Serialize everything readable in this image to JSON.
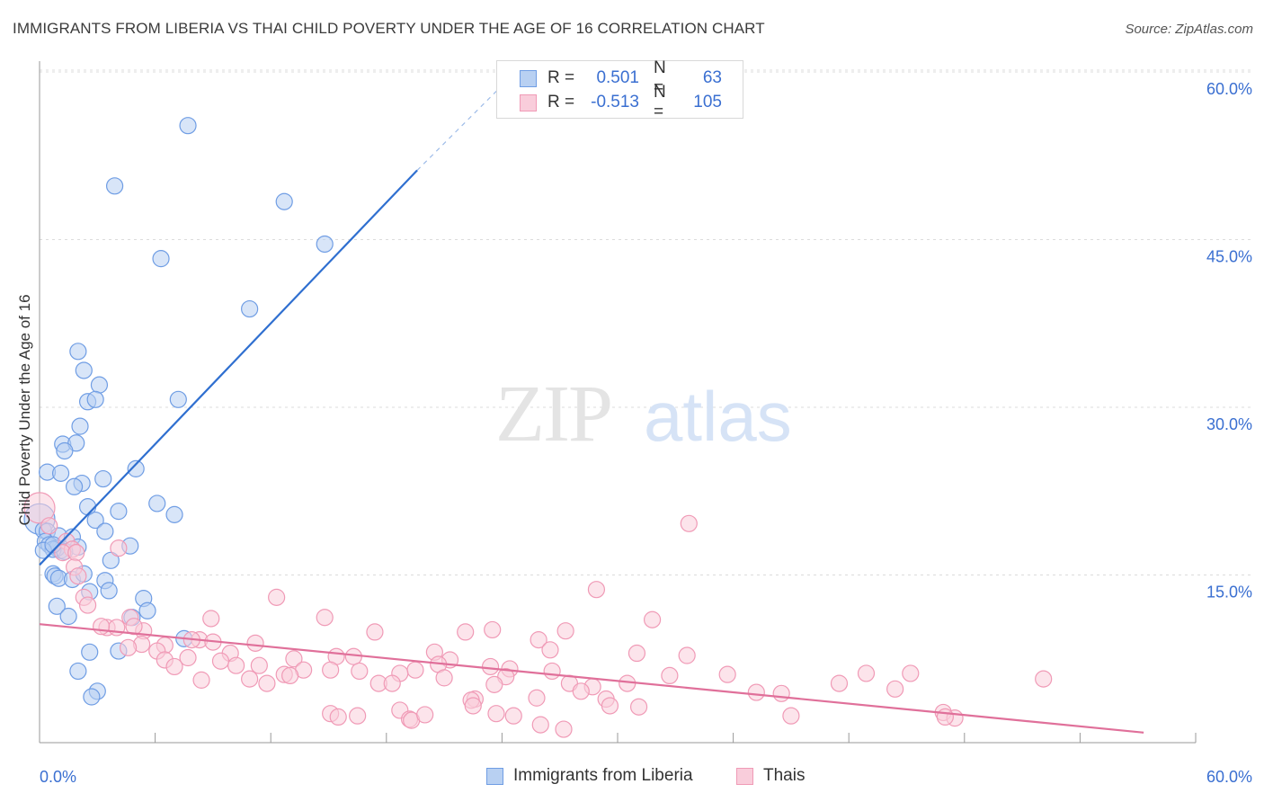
{
  "title": "IMMIGRANTS FROM LIBERIA VS THAI CHILD POVERTY UNDER THE AGE OF 16 CORRELATION CHART",
  "source": "Source: ZipAtlas.com",
  "watermark": {
    "zip": "ZIP",
    "atlas": "atlas"
  },
  "legend_stats": [
    {
      "r_label": "R =",
      "r_value": "0.501",
      "n_label": "N =",
      "n_value": "63",
      "color": "#6f9de4",
      "fill": "#b8d0f2"
    },
    {
      "r_label": "R =",
      "r_value": "-0.513",
      "n_label": "N =",
      "n_value": "105",
      "color": "#f09ab6",
      "fill": "#f9cddb"
    }
  ],
  "chart_data": {
    "type": "scatter",
    "title": "IMMIGRANTS FROM LIBERIA VS THAI CHILD POVERTY UNDER THE AGE OF 16 CORRELATION CHART",
    "xlabel": "",
    "ylabel": "Child Poverty Under the Age of 16",
    "xlim": [
      0,
      60
    ],
    "ylim": [
      0,
      60
    ],
    "x_tick_labels": [
      "0.0%",
      "60.0%"
    ],
    "y_tick_labels": [
      "15.0%",
      "30.0%",
      "45.0%",
      "60.0%"
    ],
    "y_ticks": [
      15,
      30,
      45,
      60
    ],
    "grid": true,
    "legend_position": "bottom",
    "series": [
      {
        "name": "Immigrants from Liberia",
        "color": "#6f9de4",
        "fill": "#b8d0f2",
        "trend": {
          "x0": 0,
          "y0": 15.9,
          "x1": 19.6,
          "y1": 51.2,
          "dash_to_x": 25.0,
          "dash_to_y": 60.5
        },
        "points": [
          [
            7.7,
            55.2
          ],
          [
            3.9,
            49.8
          ],
          [
            12.7,
            48.4
          ],
          [
            14.8,
            44.6
          ],
          [
            6.3,
            43.3
          ],
          [
            10.9,
            38.8
          ],
          [
            2.0,
            35.0
          ],
          [
            2.3,
            33.3
          ],
          [
            3.1,
            32.0
          ],
          [
            2.5,
            30.5
          ],
          [
            2.9,
            30.7
          ],
          [
            7.2,
            30.7
          ],
          [
            2.1,
            28.3
          ],
          [
            1.2,
            26.7
          ],
          [
            1.9,
            26.8
          ],
          [
            1.3,
            26.1
          ],
          [
            0.4,
            24.2
          ],
          [
            1.1,
            24.1
          ],
          [
            3.3,
            23.6
          ],
          [
            5.0,
            24.5
          ],
          [
            2.2,
            23.2
          ],
          [
            1.8,
            22.9
          ],
          [
            0.0,
            20.0
          ],
          [
            6.1,
            21.4
          ],
          [
            2.5,
            21.1
          ],
          [
            4.1,
            20.7
          ],
          [
            7.0,
            20.4
          ],
          [
            2.9,
            19.9
          ],
          [
            0.2,
            19.0
          ],
          [
            0.4,
            18.9
          ],
          [
            1.0,
            18.5
          ],
          [
            1.7,
            18.4
          ],
          [
            3.4,
            18.9
          ],
          [
            0.3,
            18.0
          ],
          [
            0.5,
            17.7
          ],
          [
            1.1,
            17.2
          ],
          [
            0.9,
            17.4
          ],
          [
            2.0,
            17.5
          ],
          [
            0.7,
            17.3
          ],
          [
            4.7,
            17.6
          ],
          [
            0.2,
            17.2
          ],
          [
            1.3,
            17.1
          ],
          [
            3.7,
            16.3
          ],
          [
            0.7,
            15.1
          ],
          [
            0.8,
            14.9
          ],
          [
            1.0,
            14.7
          ],
          [
            1.7,
            14.6
          ],
          [
            2.3,
            15.1
          ],
          [
            3.4,
            14.5
          ],
          [
            3.6,
            13.6
          ],
          [
            2.6,
            13.5
          ],
          [
            5.4,
            12.9
          ],
          [
            0.9,
            12.2
          ],
          [
            5.6,
            11.8
          ],
          [
            4.8,
            11.2
          ],
          [
            1.5,
            11.3
          ],
          [
            7.5,
            9.3
          ],
          [
            2.6,
            8.1
          ],
          [
            4.1,
            8.2
          ],
          [
            2.0,
            6.4
          ],
          [
            3.0,
            4.6
          ],
          [
            2.7,
            4.1
          ],
          [
            0.7,
            17.7
          ]
        ]
      },
      {
        "name": "Thais",
        "color": "#f09ab6",
        "fill": "#f9cddb",
        "trend": {
          "x0": 0,
          "y0": 10.6,
          "x1": 57.3,
          "y1": 0.9
        },
        "points": [
          [
            0.0,
            21.0
          ],
          [
            0.5,
            19.4
          ],
          [
            1.4,
            18.0
          ],
          [
            1.7,
            17.3
          ],
          [
            1.2,
            17.0
          ],
          [
            1.9,
            17.0
          ],
          [
            4.1,
            17.4
          ],
          [
            33.7,
            19.6
          ],
          [
            1.8,
            15.7
          ],
          [
            2.0,
            14.9
          ],
          [
            2.3,
            13.0
          ],
          [
            2.5,
            12.3
          ],
          [
            28.9,
            13.7
          ],
          [
            12.3,
            13.0
          ],
          [
            8.9,
            11.1
          ],
          [
            14.8,
            11.2
          ],
          [
            31.8,
            11.0
          ],
          [
            4.7,
            11.2
          ],
          [
            3.5,
            10.3
          ],
          [
            5.4,
            10.0
          ],
          [
            4.0,
            10.3
          ],
          [
            17.4,
            9.9
          ],
          [
            22.1,
            9.9
          ],
          [
            23.5,
            10.1
          ],
          [
            25.9,
            9.2
          ],
          [
            27.3,
            10.0
          ],
          [
            8.3,
            9.2
          ],
          [
            9.0,
            9.0
          ],
          [
            7.9,
            9.2
          ],
          [
            6.5,
            8.7
          ],
          [
            11.2,
            8.9
          ],
          [
            5.3,
            8.8
          ],
          [
            4.6,
            8.5
          ],
          [
            6.1,
            8.2
          ],
          [
            26.5,
            8.3
          ],
          [
            31.0,
            8.0
          ],
          [
            33.6,
            7.8
          ],
          [
            20.5,
            8.1
          ],
          [
            9.9,
            8.0
          ],
          [
            6.5,
            7.4
          ],
          [
            7.7,
            7.6
          ],
          [
            13.2,
            7.5
          ],
          [
            15.4,
            7.7
          ],
          [
            16.3,
            7.7
          ],
          [
            9.4,
            7.3
          ],
          [
            7.0,
            6.8
          ],
          [
            11.4,
            6.9
          ],
          [
            10.2,
            6.9
          ],
          [
            21.3,
            7.4
          ],
          [
            20.7,
            7.0
          ],
          [
            19.5,
            6.5
          ],
          [
            13.7,
            6.5
          ],
          [
            12.7,
            6.1
          ],
          [
            15.1,
            6.5
          ],
          [
            16.6,
            6.4
          ],
          [
            18.7,
            6.2
          ],
          [
            23.4,
            6.8
          ],
          [
            24.4,
            6.6
          ],
          [
            26.6,
            6.4
          ],
          [
            24.2,
            5.9
          ],
          [
            32.7,
            6.0
          ],
          [
            35.7,
            6.1
          ],
          [
            42.9,
            6.2
          ],
          [
            45.2,
            6.2
          ],
          [
            52.1,
            5.7
          ],
          [
            10.9,
            5.7
          ],
          [
            11.8,
            5.3
          ],
          [
            13.0,
            6.0
          ],
          [
            8.4,
            5.6
          ],
          [
            17.6,
            5.3
          ],
          [
            18.3,
            5.3
          ],
          [
            21.0,
            5.8
          ],
          [
            23.6,
            5.2
          ],
          [
            27.5,
            5.3
          ],
          [
            28.7,
            5.0
          ],
          [
            30.5,
            5.3
          ],
          [
            41.5,
            5.3
          ],
          [
            44.4,
            4.8
          ],
          [
            38.5,
            4.4
          ],
          [
            37.2,
            4.5
          ],
          [
            28.1,
            4.6
          ],
          [
            29.4,
            3.9
          ],
          [
            25.8,
            4.0
          ],
          [
            22.6,
            3.9
          ],
          [
            22.4,
            3.8
          ],
          [
            22.5,
            3.3
          ],
          [
            23.7,
            2.6
          ],
          [
            29.6,
            3.3
          ],
          [
            31.1,
            3.2
          ],
          [
            24.6,
            2.4
          ],
          [
            18.7,
            2.9
          ],
          [
            15.1,
            2.6
          ],
          [
            15.5,
            2.3
          ],
          [
            16.5,
            2.4
          ],
          [
            19.2,
            2.1
          ],
          [
            19.3,
            2.0
          ],
          [
            20.0,
            2.5
          ],
          [
            26.0,
            1.6
          ],
          [
            27.2,
            1.2
          ],
          [
            39.0,
            2.4
          ],
          [
            46.9,
            2.7
          ],
          [
            47.5,
            2.2
          ],
          [
            47.0,
            2.3
          ],
          [
            3.2,
            10.4
          ],
          [
            4.9,
            10.4
          ]
        ]
      }
    ]
  }
}
